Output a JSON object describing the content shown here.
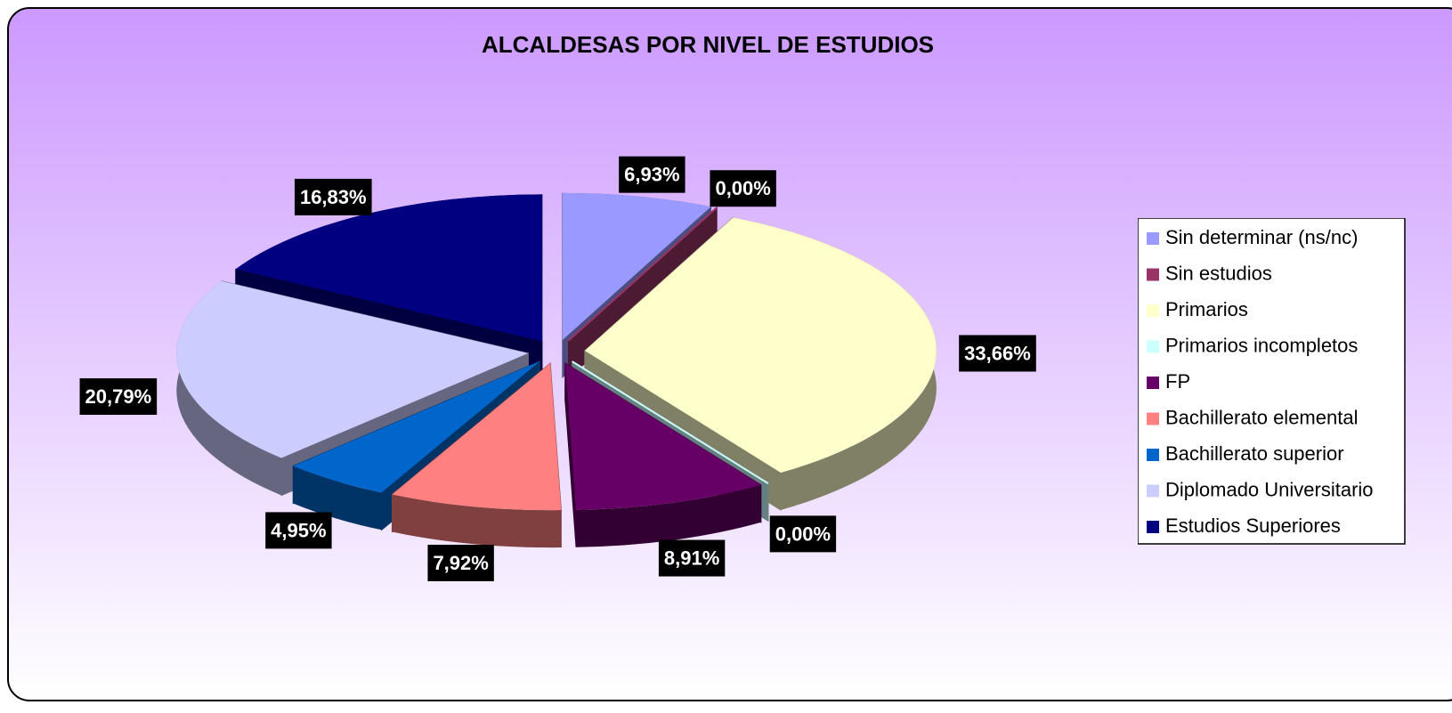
{
  "chart_data": {
    "type": "pie",
    "title": "ALCALDESAS POR NIVEL DE ESTUDIOS",
    "categories": [
      "Sin determinar (ns/nc)",
      "Sin estudios",
      "Primarios",
      "Primarios incompletos",
      "FP",
      "Bachillerato elemental",
      "Bachillerato superior",
      "Diplomado Universitario",
      "Estudios Superiores"
    ],
    "values": [
      6.93,
      0,
      33.66,
      0,
      8.91,
      7.92,
      4.95,
      20.79,
      16.83
    ],
    "value_labels": [
      "6,93%",
      "0,00%",
      "33,66%",
      "0,00%",
      "8,91%",
      "7,92%",
      "4,95%",
      "20,79%",
      "16,83%"
    ],
    "colors": [
      "#9999ff",
      "#993366",
      "#ffffcc",
      "#ccffff",
      "#660066",
      "#ff8080",
      "#0066cc",
      "#ccccff",
      "#000080"
    ],
    "legend": "right"
  }
}
